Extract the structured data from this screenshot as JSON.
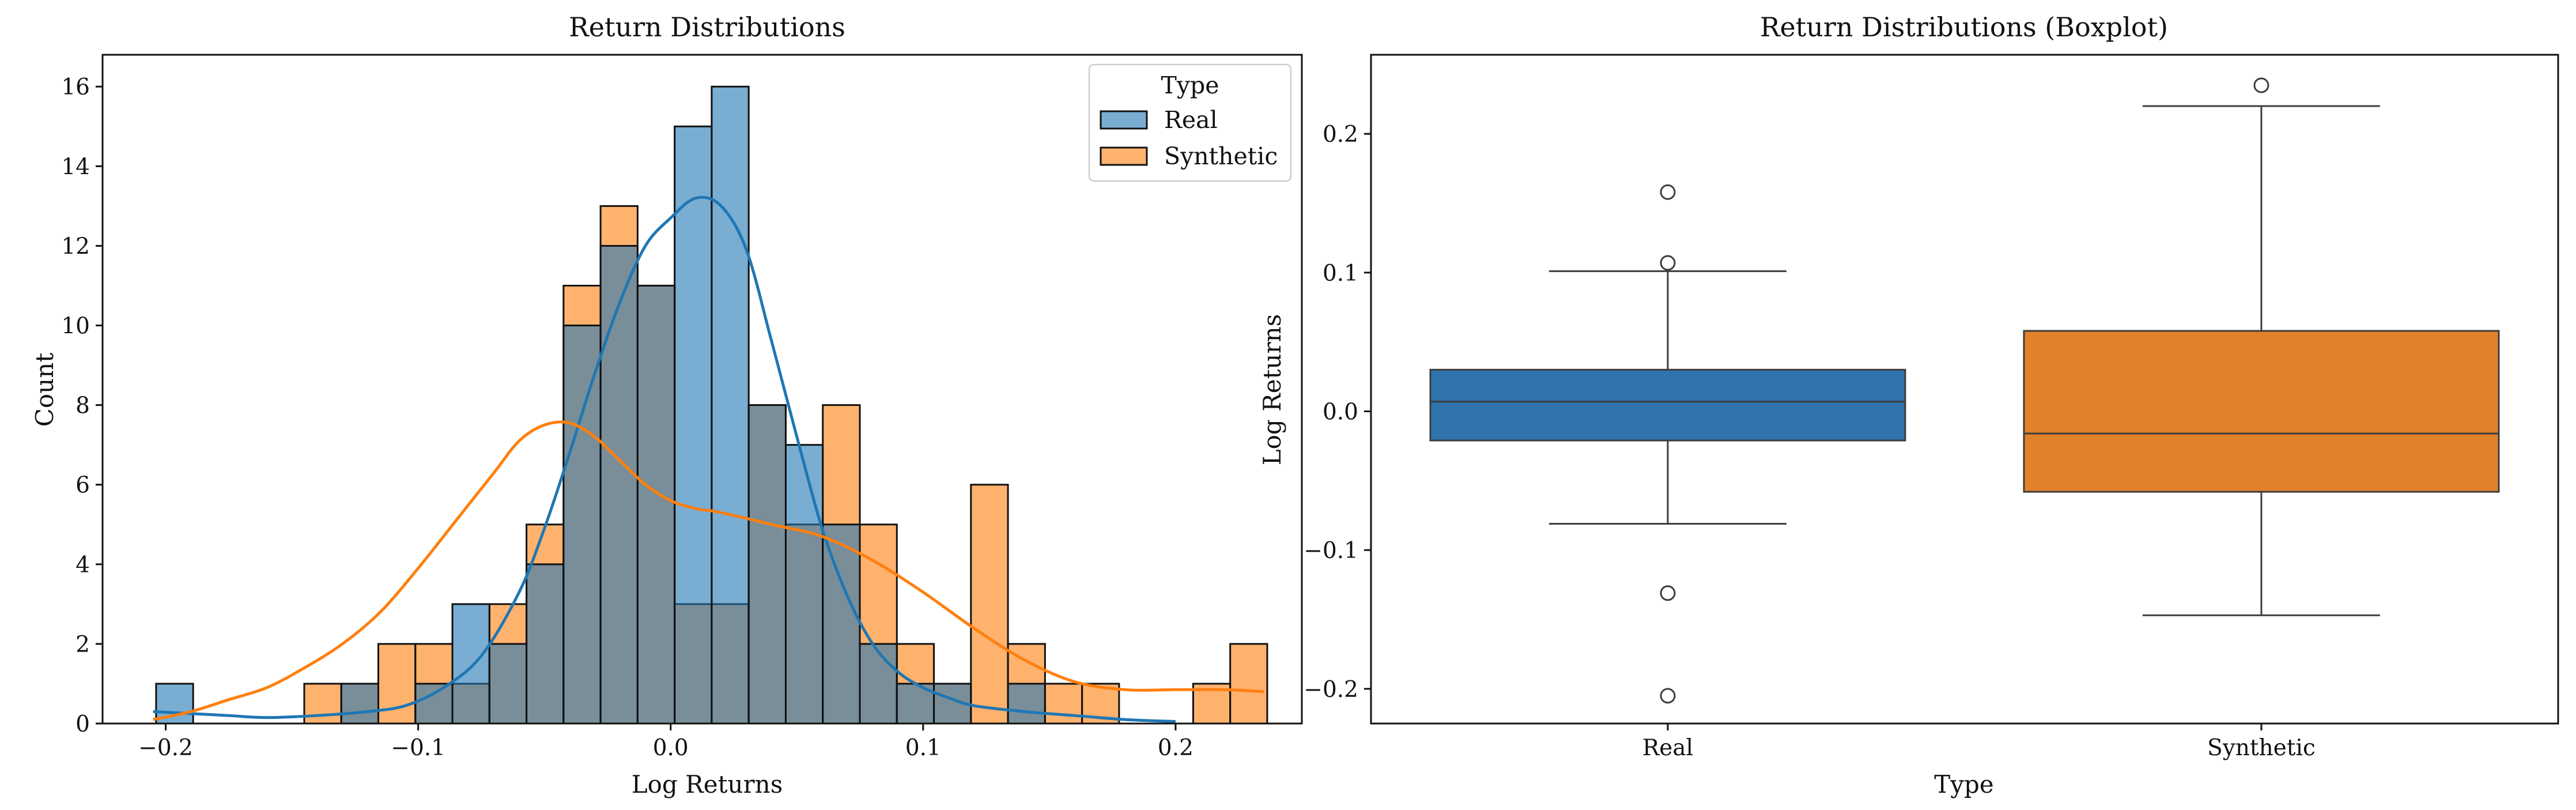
{
  "colors": {
    "real": "#1f77b4",
    "synthetic": "#ff7f0e",
    "box_real": "#2f74ad",
    "box_synthetic": "#e1812c",
    "axis": "#111111"
  },
  "chart_data": [
    {
      "type": "histogram",
      "title": "Return Distributions",
      "xlabel": "Log Returns",
      "ylabel": "Count",
      "xlim": [
        -0.225,
        0.25
      ],
      "ylim": [
        0,
        16.8
      ],
      "xticks": [
        -0.2,
        -0.1,
        0.0,
        0.1,
        0.2
      ],
      "xtick_labels": [
        "−0.2",
        "−0.1",
        "0.0",
        "0.1",
        "0.2"
      ],
      "yticks": [
        0,
        2,
        4,
        6,
        8,
        10,
        12,
        14,
        16
      ],
      "ytick_labels": [
        "0",
        "2",
        "4",
        "6",
        "8",
        "10",
        "12",
        "14",
        "16"
      ],
      "bins": {
        "start": -0.2038,
        "width": 0.01467,
        "count": 30
      },
      "legend": {
        "title": "Type",
        "placement": "top-right",
        "entries": [
          "Real",
          "Synthetic"
        ]
      },
      "grid": false,
      "series": [
        {
          "name": "Real",
          "color_key": "real",
          "counts": [
            1,
            0,
            0,
            0,
            0,
            1,
            0,
            1,
            3,
            2,
            4,
            10,
            12,
            11,
            15,
            16,
            8,
            7,
            5,
            2,
            1,
            1,
            0,
            1,
            0,
            0,
            0,
            0,
            0,
            0
          ],
          "kde_x": [
            -0.205,
            -0.19,
            -0.175,
            -0.16,
            -0.14,
            -0.12,
            -0.105,
            -0.09,
            -0.075,
            -0.06,
            -0.05,
            -0.04,
            -0.03,
            -0.02,
            -0.01,
            0.0,
            0.01,
            0.02,
            0.03,
            0.04,
            0.05,
            0.06,
            0.07,
            0.08,
            0.09,
            0.1,
            0.11,
            0.12,
            0.14,
            0.16,
            0.18,
            0.2
          ],
          "kde_y": [
            0.3,
            0.25,
            0.2,
            0.15,
            0.2,
            0.3,
            0.45,
            0.9,
            1.7,
            3.3,
            4.9,
            6.8,
            8.8,
            10.6,
            12.0,
            12.7,
            13.2,
            13.0,
            11.9,
            9.6,
            7.2,
            4.9,
            3.2,
            2.0,
            1.3,
            0.9,
            0.65,
            0.45,
            0.3,
            0.2,
            0.1,
            0.05
          ]
        },
        {
          "name": "Synthetic",
          "color_key": "synthetic",
          "counts": [
            0,
            0,
            0,
            0,
            1,
            1,
            2,
            2,
            1,
            3,
            5,
            11,
            13,
            11,
            3,
            3,
            8,
            5,
            8,
            5,
            2,
            1,
            6,
            2,
            1,
            1,
            0,
            0,
            1,
            2
          ],
          "kde_x": [
            -0.205,
            -0.19,
            -0.175,
            -0.16,
            -0.145,
            -0.13,
            -0.115,
            -0.1,
            -0.085,
            -0.07,
            -0.06,
            -0.05,
            -0.04,
            -0.03,
            -0.02,
            -0.01,
            0.0,
            0.01,
            0.02,
            0.04,
            0.06,
            0.08,
            0.1,
            0.12,
            0.14,
            0.16,
            0.18,
            0.2,
            0.22,
            0.235
          ],
          "kde_y": [
            0.1,
            0.3,
            0.6,
            0.9,
            1.4,
            2.0,
            2.8,
            3.9,
            5.1,
            6.3,
            7.1,
            7.5,
            7.55,
            7.2,
            6.6,
            6.0,
            5.6,
            5.4,
            5.3,
            5.0,
            4.7,
            4.1,
            3.3,
            2.4,
            1.6,
            1.05,
            0.85,
            0.85,
            0.85,
            0.8
          ]
        }
      ]
    },
    {
      "type": "boxplot",
      "title": "Return Distributions (Boxplot)",
      "xlabel": "Type",
      "ylabel": "Log Returns",
      "ylim": [
        -0.225,
        0.257
      ],
      "yticks": [
        -0.2,
        -0.1,
        0.0,
        0.1,
        0.2
      ],
      "ytick_labels": [
        "−0.2",
        "−0.1",
        "0.0",
        "0.1",
        "0.2"
      ],
      "categories": [
        "Real",
        "Synthetic"
      ],
      "grid": false,
      "boxes": [
        {
          "name": "Real",
          "color_key": "box_real",
          "whisker_low": -0.081,
          "q1": -0.021,
          "median": 0.007,
          "q3": 0.03,
          "whisker_high": 0.101,
          "outliers": [
            0.158,
            0.107,
            -0.131,
            -0.205
          ]
        },
        {
          "name": "Synthetic",
          "color_key": "box_synthetic",
          "whisker_low": -0.147,
          "q1": -0.058,
          "median": -0.016,
          "q3": 0.058,
          "whisker_high": 0.22,
          "outliers": [
            0.235
          ]
        }
      ]
    }
  ]
}
